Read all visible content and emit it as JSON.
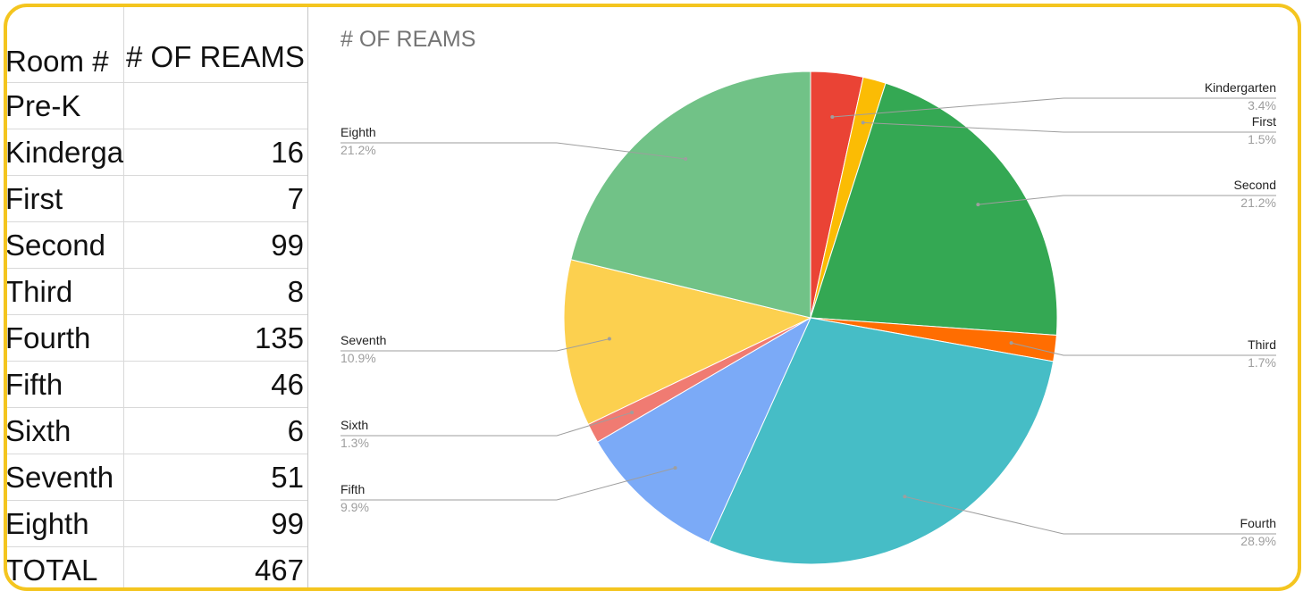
{
  "sheet": {
    "header": {
      "col_a": "Room #",
      "col_b": "# OF REAMS"
    },
    "rows": [
      {
        "label": "Pre-K",
        "value": ""
      },
      {
        "label": "Kindergarten",
        "value": "16"
      },
      {
        "label": "First",
        "value": "7"
      },
      {
        "label": "Second",
        "value": "99"
      },
      {
        "label": "Third",
        "value": "8"
      },
      {
        "label": "Fourth",
        "value": "135"
      },
      {
        "label": "Fifth",
        "value": "46"
      },
      {
        "label": "Sixth",
        "value": "6"
      },
      {
        "label": "Seventh",
        "value": "51"
      },
      {
        "label": "Eighth",
        "value": "99"
      },
      {
        "label": "TOTAL",
        "value": "467"
      }
    ]
  },
  "chart_data": {
    "type": "pie",
    "title": "# OF REAMS",
    "slices": [
      {
        "label": "Kindergarten",
        "value": 16,
        "percent": "3.4%",
        "color": "#ea4335",
        "side": "right"
      },
      {
        "label": "First",
        "value": 7,
        "percent": "1.5%",
        "color": "#fbbc04",
        "side": "right"
      },
      {
        "label": "Second",
        "value": 99,
        "percent": "21.2%",
        "color": "#34a853",
        "side": "right"
      },
      {
        "label": "Third",
        "value": 8,
        "percent": "1.7%",
        "color": "#ff6d01",
        "side": "right"
      },
      {
        "label": "Fourth",
        "value": 135,
        "percent": "28.9%",
        "color": "#46bdc6",
        "side": "right"
      },
      {
        "label": "Fifth",
        "value": 46,
        "percent": "9.9%",
        "color": "#7baaf7",
        "side": "left"
      },
      {
        "label": "Sixth",
        "value": 6,
        "percent": "1.3%",
        "color": "#f07b72",
        "side": "left"
      },
      {
        "label": "Seventh",
        "value": 51,
        "percent": "10.9%",
        "color": "#fcd04f",
        "side": "left"
      },
      {
        "label": "Eighth",
        "value": 99,
        "percent": "21.2%",
        "color": "#71c287",
        "side": "left"
      }
    ],
    "legend": "none"
  }
}
